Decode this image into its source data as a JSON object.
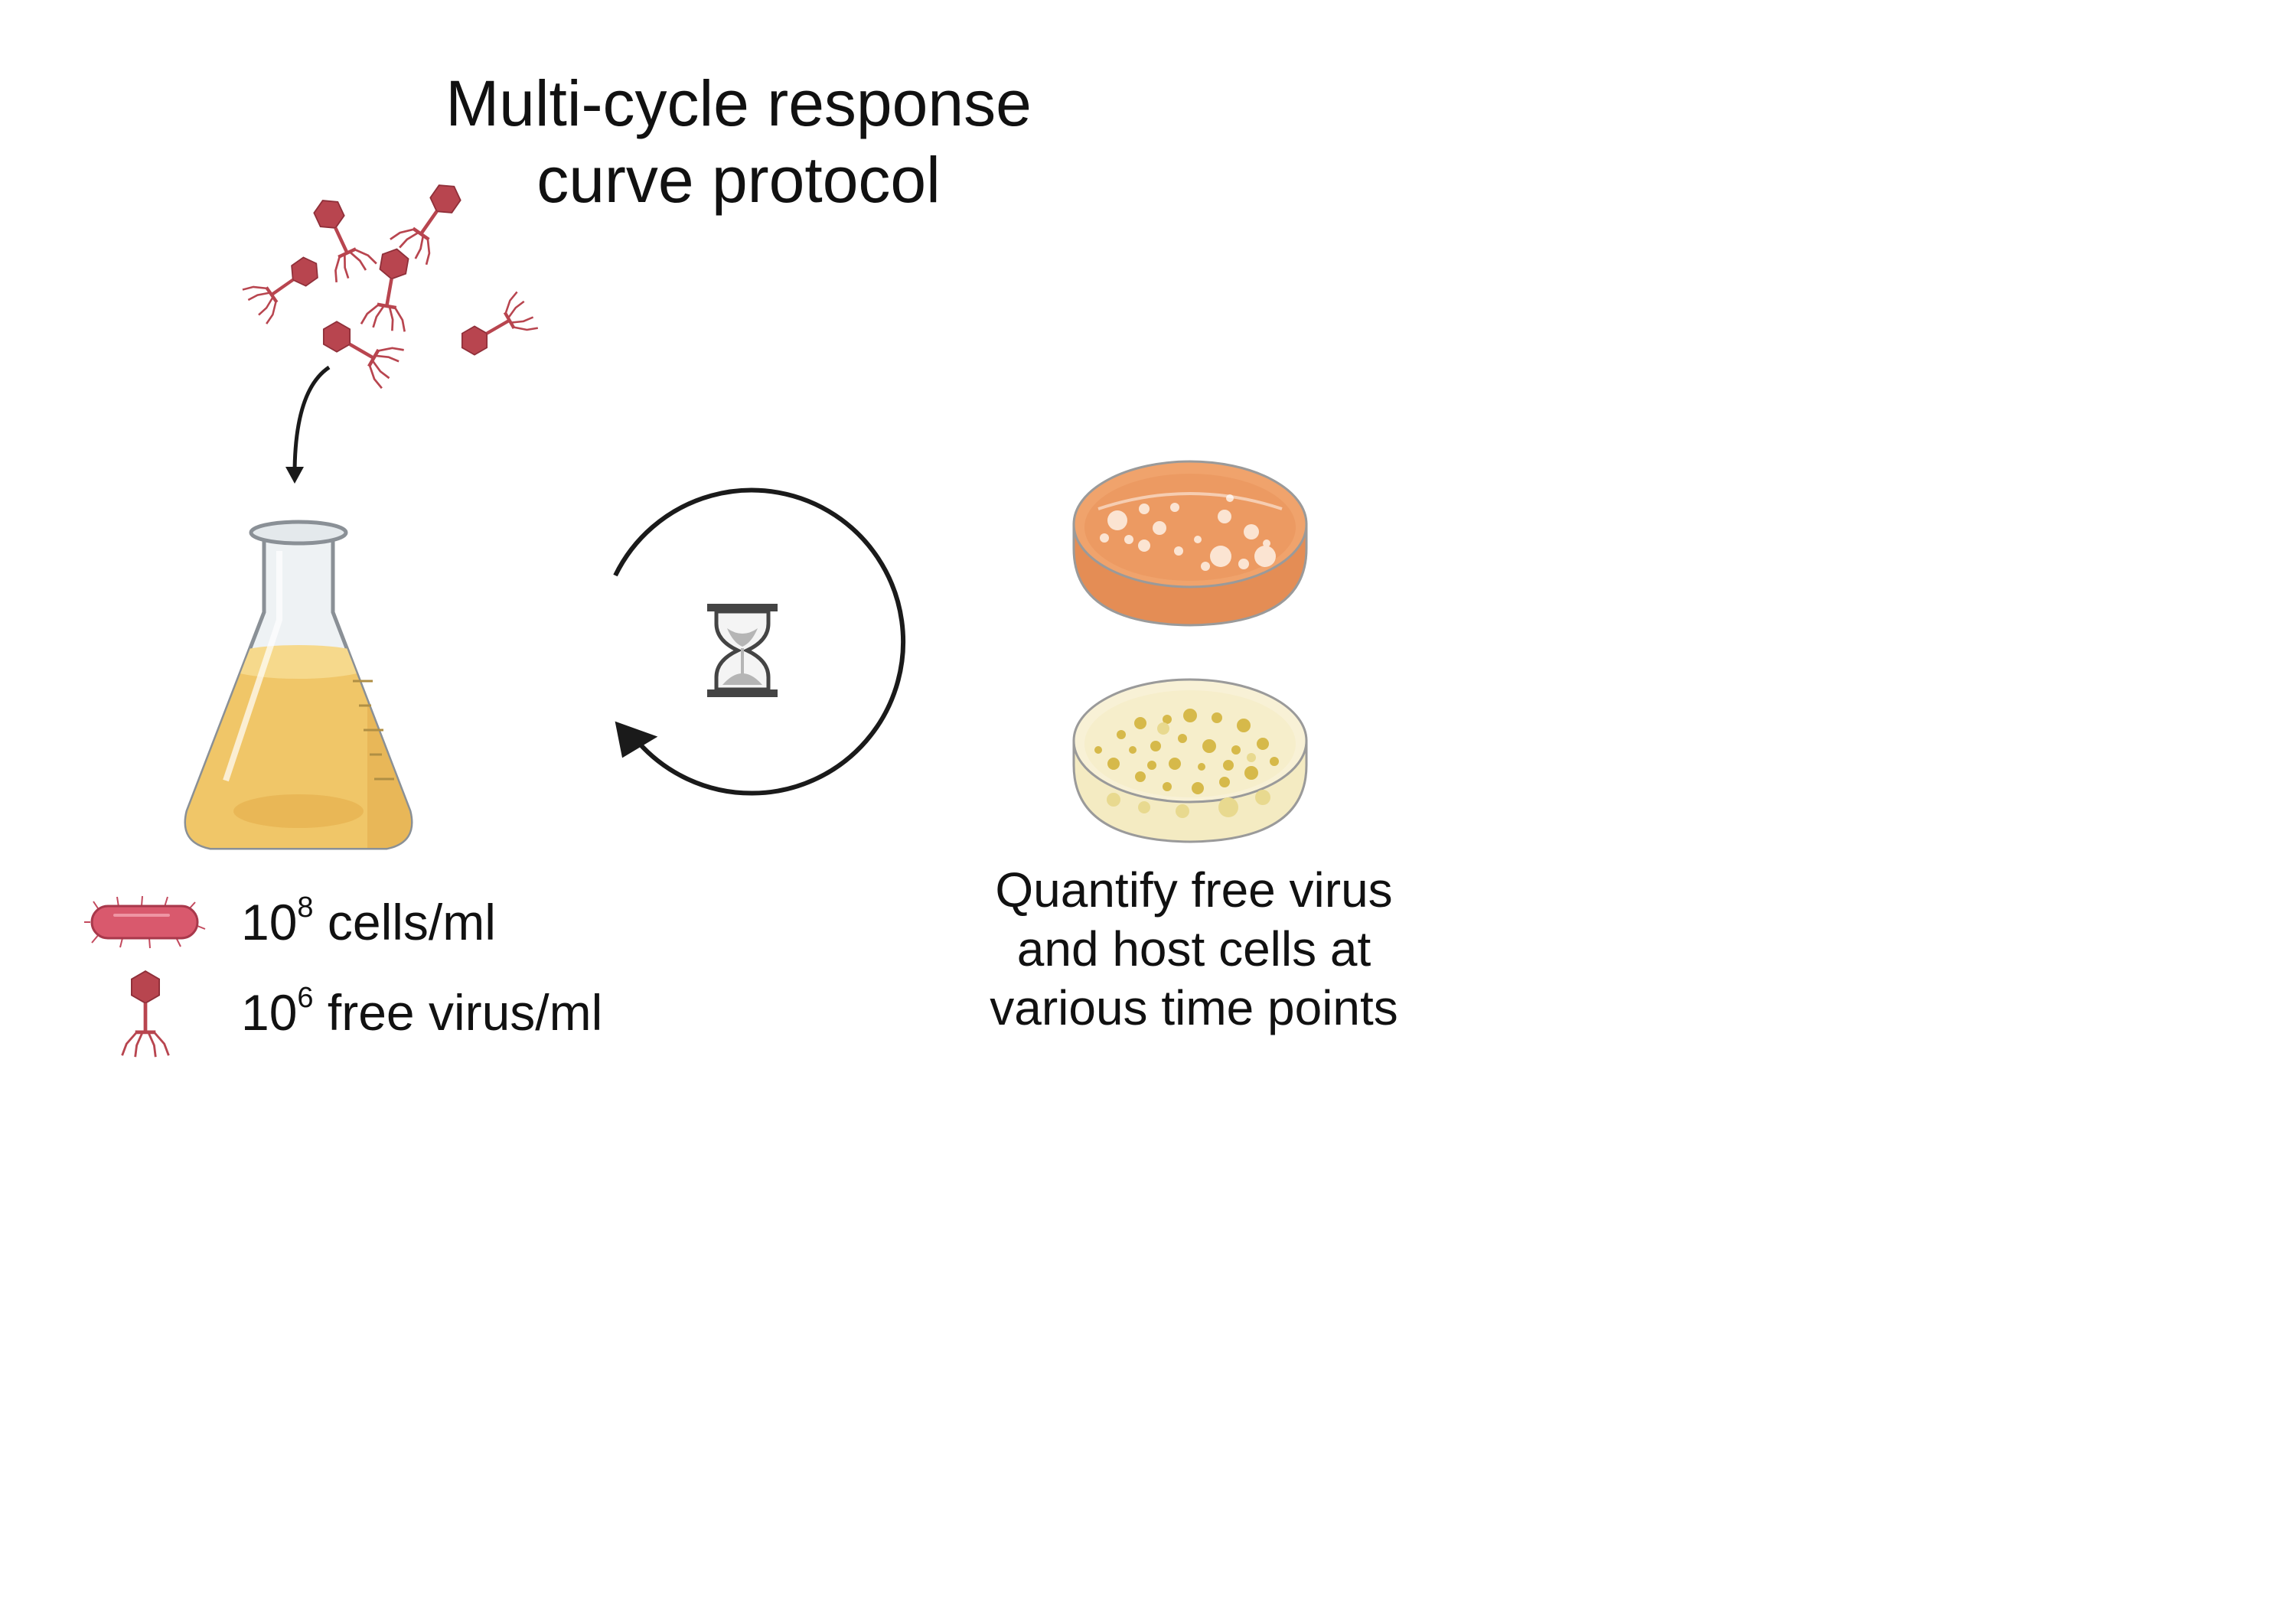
{
  "diagram": {
    "title_line1": "Multi-cycle response",
    "title_line2": "curve protocol",
    "legend": [
      {
        "icon": "bacterium-icon",
        "base": "10",
        "exponent": "8",
        "unit": " cells/ml"
      },
      {
        "icon": "phage-icon",
        "base": "10",
        "exponent": "6",
        "unit": " free virus/ml"
      }
    ],
    "quantify_text": "Quantify free virus and host cells at various time points",
    "colors": {
      "phage": "#b8454f",
      "flask_liquid": "#f0c668",
      "plate_orange": "#e9935a",
      "plate_yellow": "#f4ebc2",
      "bacterium": "#d9596d",
      "arrow": "#1a1a1a"
    }
  }
}
